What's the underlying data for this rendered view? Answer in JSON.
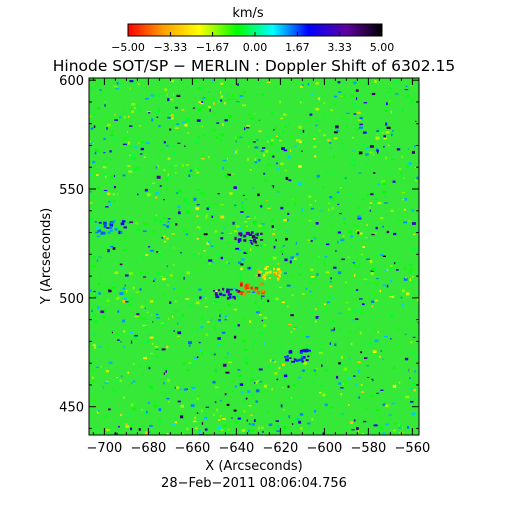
{
  "chart_data": {
    "type": "heatmap",
    "title": "Hinode SOT/SP − MERLIN : Doppler Shift of 6302.15",
    "subtitle": "28−Feb−2011 08:06:04.756",
    "xlabel": "X (Arcseconds)",
    "ylabel": "Y (Arcseconds)",
    "xlim": [
      -707,
      -557
    ],
    "ylim": [
      437,
      601
    ],
    "x_ticks": [
      -700,
      -680,
      -660,
      -640,
      -620,
      -600,
      -580,
      -560
    ],
    "y_ticks": [
      450,
      500,
      550,
      600
    ],
    "x_tick_labels": [
      "−700",
      "−680",
      "−660",
      "−640",
      "−620",
      "−600",
      "−580",
      "−560"
    ],
    "y_tick_labels": [
      "450",
      "500",
      "550",
      "600"
    ],
    "colorbar": {
      "label": "km/s",
      "range": [
        -5.0,
        5.0
      ],
      "ticks": [
        -5.0,
        -3.33,
        -1.67,
        0.0,
        1.67,
        3.33,
        5.0
      ],
      "tick_labels": [
        "−5.00",
        "−3.33",
        "−1.67",
        "0.00",
        "1.67",
        "3.33",
        "5.00"
      ],
      "colors": [
        "#ff0000",
        "#ffa000",
        "#ffff00",
        "#00ff00",
        "#00ffff",
        "#0000ff",
        "#6000a0",
        "#000000"
      ]
    },
    "features": [
      {
        "kind": "redshift-cluster",
        "x": -626,
        "y": 512,
        "value_kms": -3.0
      },
      {
        "kind": "redshift-cluster",
        "x": -634,
        "y": 505,
        "value_kms": -4.5
      },
      {
        "kind": "blueshift-cluster",
        "x": -635,
        "y": 528,
        "value_kms": 3.5
      },
      {
        "kind": "blueshift-cluster",
        "x": -645,
        "y": 503,
        "value_kms": 3.0
      },
      {
        "kind": "blueshift-cluster",
        "x": -613,
        "y": 474,
        "value_kms": 2.5
      },
      {
        "kind": "blueshift-cluster",
        "x": -697,
        "y": 533,
        "value_kms": 2.0
      }
    ],
    "grid": false,
    "legend": "colorbar-top"
  }
}
